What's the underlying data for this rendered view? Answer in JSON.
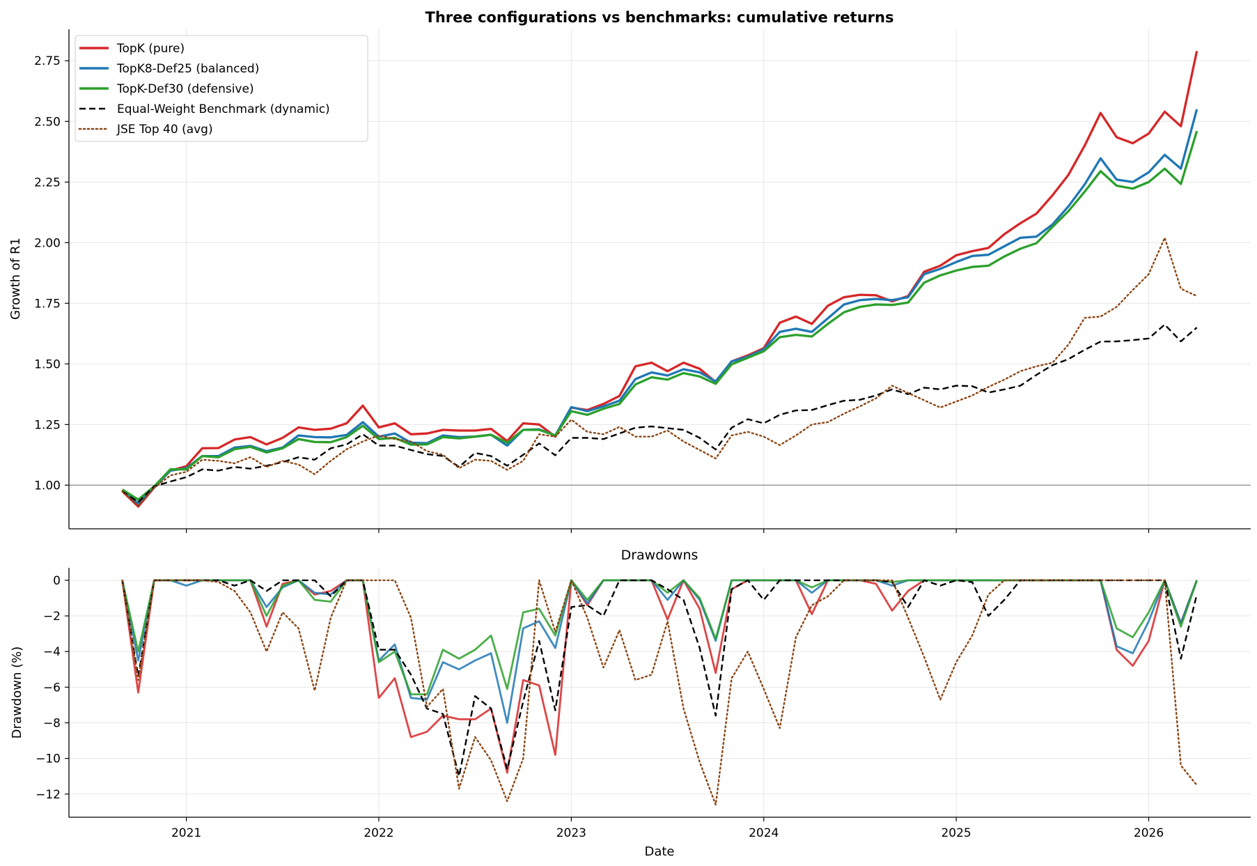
{
  "chart_data": [
    {
      "type": "line",
      "title": "Three configurations vs benchmarks: cumulative returns",
      "xlabel": "",
      "ylabel": "Growth of R1",
      "ylim": [
        0.82,
        2.88
      ],
      "yticks": [
        1.0,
        1.25,
        1.5,
        1.75,
        2.0,
        2.25,
        2.5,
        2.75
      ],
      "ytick_labels": [
        "1.00",
        "1.25",
        "1.50",
        "1.75",
        "2.00",
        "2.25",
        "2.50",
        "2.75"
      ],
      "xlim": [
        2020.39,
        2026.53
      ],
      "xticks": [
        2021,
        2022,
        2023,
        2024,
        2025,
        2026
      ],
      "xtick_labels": [
        "2021",
        "2022",
        "2023",
        "2024",
        "2025",
        "2026"
      ],
      "reference_line": 1.0,
      "grid": true,
      "legend_position": "top-left",
      "x": [
        2020.667,
        2020.75,
        2020.833,
        2020.917,
        2021.0,
        2021.083,
        2021.167,
        2021.25,
        2021.333,
        2021.417,
        2021.5,
        2021.583,
        2021.667,
        2021.75,
        2021.833,
        2021.917,
        2022.0,
        2022.083,
        2022.167,
        2022.25,
        2022.333,
        2022.417,
        2022.5,
        2022.583,
        2022.667,
        2022.75,
        2022.833,
        2022.917,
        2023.0,
        2023.083,
        2023.167,
        2023.25,
        2023.333,
        2023.417,
        2023.5,
        2023.583,
        2023.667,
        2023.75,
        2023.833,
        2023.917,
        2024.0,
        2024.083,
        2024.167,
        2024.25,
        2024.333,
        2024.417,
        2024.5,
        2024.583,
        2024.667,
        2024.75,
        2024.833,
        2024.917,
        2025.0,
        2025.083,
        2025.167,
        2025.25,
        2025.333,
        2025.417,
        2025.5,
        2025.583,
        2025.667,
        2025.75,
        2025.833,
        2025.917,
        2026.0,
        2026.083,
        2026.167,
        2026.25
      ],
      "series": [
        {
          "name": "TopK (pure)",
          "color": "#d62728",
          "style": "solid",
          "values": [
            0.975,
            0.912,
            0.99,
            1.06,
            1.078,
            1.152,
            1.153,
            1.188,
            1.198,
            1.168,
            1.195,
            1.238,
            1.228,
            1.233,
            1.255,
            1.328,
            1.238,
            1.255,
            1.21,
            1.213,
            1.228,
            1.225,
            1.225,
            1.232,
            1.182,
            1.255,
            1.25,
            1.2,
            1.32,
            1.31,
            1.335,
            1.368,
            1.49,
            1.505,
            1.47,
            1.505,
            1.48,
            1.425,
            1.51,
            1.535,
            1.565,
            1.67,
            1.695,
            1.665,
            1.74,
            1.775,
            1.785,
            1.783,
            1.758,
            1.78,
            1.88,
            1.905,
            1.948,
            1.965,
            1.978,
            2.035,
            2.08,
            2.12,
            2.195,
            2.28,
            2.4,
            2.535,
            2.435,
            2.41,
            2.45,
            2.54,
            2.48,
            2.79
          ]
        },
        {
          "name": "TopK8-Def25 (balanced)",
          "color": "#1f77b4",
          "style": "solid",
          "values": [
            0.98,
            0.925,
            0.992,
            1.06,
            1.07,
            1.12,
            1.12,
            1.155,
            1.162,
            1.14,
            1.155,
            1.205,
            1.198,
            1.197,
            1.207,
            1.26,
            1.2,
            1.213,
            1.175,
            1.173,
            1.205,
            1.198,
            1.2,
            1.208,
            1.163,
            1.228,
            1.23,
            1.205,
            1.322,
            1.305,
            1.325,
            1.348,
            1.437,
            1.465,
            1.452,
            1.478,
            1.465,
            1.428,
            1.51,
            1.53,
            1.56,
            1.632,
            1.645,
            1.632,
            1.688,
            1.745,
            1.763,
            1.768,
            1.763,
            1.775,
            1.87,
            1.892,
            1.92,
            1.945,
            1.95,
            1.985,
            2.02,
            2.025,
            2.075,
            2.15,
            2.24,
            2.348,
            2.26,
            2.25,
            2.29,
            2.362,
            2.305,
            2.55
          ]
        },
        {
          "name": "TopK-Def30 (defensive)",
          "color": "#2ca02c",
          "style": "solid",
          "values": [
            0.982,
            0.94,
            0.995,
            1.065,
            1.065,
            1.12,
            1.115,
            1.148,
            1.158,
            1.135,
            1.152,
            1.19,
            1.178,
            1.177,
            1.198,
            1.245,
            1.19,
            1.195,
            1.167,
            1.168,
            1.198,
            1.193,
            1.2,
            1.208,
            1.175,
            1.228,
            1.228,
            1.205,
            1.305,
            1.29,
            1.315,
            1.335,
            1.415,
            1.445,
            1.435,
            1.462,
            1.448,
            1.418,
            1.498,
            1.525,
            1.552,
            1.61,
            1.62,
            1.613,
            1.665,
            1.713,
            1.735,
            1.745,
            1.743,
            1.753,
            1.835,
            1.865,
            1.885,
            1.9,
            1.905,
            1.943,
            1.975,
            1.998,
            2.065,
            2.13,
            2.21,
            2.295,
            2.235,
            2.223,
            2.25,
            2.305,
            2.242,
            2.46
          ]
        },
        {
          "name": "Equal-Weight Benchmark (dynamic)",
          "color": "#000000",
          "style": "dashed",
          "values": [
            0.975,
            0.93,
            0.995,
            1.015,
            1.033,
            1.065,
            1.06,
            1.075,
            1.068,
            1.08,
            1.095,
            1.115,
            1.105,
            1.152,
            1.168,
            1.21,
            1.163,
            1.163,
            1.145,
            1.128,
            1.12,
            1.075,
            1.133,
            1.12,
            1.08,
            1.125,
            1.172,
            1.123,
            1.195,
            1.195,
            1.19,
            1.213,
            1.237,
            1.242,
            1.235,
            1.228,
            1.195,
            1.147,
            1.237,
            1.272,
            1.255,
            1.29,
            1.308,
            1.31,
            1.33,
            1.348,
            1.352,
            1.37,
            1.395,
            1.375,
            1.402,
            1.395,
            1.41,
            1.408,
            1.382,
            1.395,
            1.41,
            1.455,
            1.495,
            1.52,
            1.558,
            1.592,
            1.593,
            1.598,
            1.605,
            1.662,
            1.593,
            1.65
          ]
        },
        {
          "name": "JSE Top 40 (avg)",
          "color": "#8b4513",
          "style": "dotted",
          "values": [
            0.975,
            0.915,
            0.99,
            1.04,
            1.055,
            1.105,
            1.1,
            1.09,
            1.115,
            1.075,
            1.1,
            1.085,
            1.045,
            1.1,
            1.148,
            1.18,
            1.205,
            1.19,
            1.18,
            1.14,
            1.125,
            1.07,
            1.105,
            1.1,
            1.063,
            1.1,
            1.21,
            1.2,
            1.27,
            1.22,
            1.21,
            1.24,
            1.2,
            1.2,
            1.225,
            1.18,
            1.145,
            1.11,
            1.205,
            1.22,
            1.2,
            1.165,
            1.205,
            1.25,
            1.26,
            1.295,
            1.325,
            1.358,
            1.41,
            1.38,
            1.35,
            1.32,
            1.345,
            1.37,
            1.405,
            1.435,
            1.47,
            1.49,
            1.505,
            1.58,
            1.69,
            1.695,
            1.735,
            1.805,
            1.87,
            2.02,
            1.81,
            1.78
          ]
        }
      ]
    },
    {
      "type": "line",
      "title": "Drawdowns",
      "xlabel": "Date",
      "ylabel": "Drawdown (%)",
      "ylim": [
        -13.3,
        0.7
      ],
      "yticks": [
        0,
        -2,
        -4,
        -6,
        -8,
        -10,
        -12
      ],
      "ytick_labels": [
        "0",
        "−2",
        "−4",
        "−6",
        "−8",
        "−10",
        "−12"
      ],
      "xlim": [
        2020.39,
        2026.53
      ],
      "xticks": [
        2021,
        2022,
        2023,
        2024,
        2025,
        2026
      ],
      "xtick_labels": [
        "2021",
        "2022",
        "2023",
        "2024",
        "2025",
        "2026"
      ],
      "grid": true,
      "x": [
        2020.667,
        2020.75,
        2020.833,
        2020.917,
        2021.0,
        2021.083,
        2021.167,
        2021.25,
        2021.333,
        2021.417,
        2021.5,
        2021.583,
        2021.667,
        2021.75,
        2021.833,
        2021.917,
        2022.0,
        2022.083,
        2022.167,
        2022.25,
        2022.333,
        2022.417,
        2022.5,
        2022.583,
        2022.667,
        2022.75,
        2022.833,
        2022.917,
        2023.0,
        2023.083,
        2023.167,
        2023.25,
        2023.333,
        2023.417,
        2023.5,
        2023.583,
        2023.667,
        2023.75,
        2023.833,
        2023.917,
        2024.0,
        2024.083,
        2024.167,
        2024.25,
        2024.333,
        2024.417,
        2024.5,
        2024.583,
        2024.667,
        2024.75,
        2024.833,
        2024.917,
        2025.0,
        2025.083,
        2025.167,
        2025.25,
        2025.333,
        2025.417,
        2025.5,
        2025.583,
        2025.667,
        2025.75,
        2025.833,
        2025.917,
        2026.0,
        2026.083,
        2026.167,
        2026.25
      ],
      "series": [
        {
          "name": "TopK (pure)",
          "color": "#d62728",
          "style": "solid",
          "values": [
            0,
            -6.3,
            0,
            0,
            0,
            0,
            0,
            0,
            0,
            -2.6,
            -0.2,
            0,
            -0.8,
            -0.6,
            0,
            0,
            -6.6,
            -5.5,
            -8.8,
            -8.5,
            -7.6,
            -7.8,
            -7.8,
            -7.2,
            -10.8,
            -5.6,
            -5.9,
            -9.8,
            0,
            -1.4,
            0,
            0,
            0,
            0,
            -2.2,
            0,
            -1.6,
            -5.2,
            -0.5,
            0,
            0,
            0,
            0,
            -1.9,
            0,
            0,
            0,
            -0.2,
            -1.7,
            -0.6,
            0,
            0,
            0,
            0,
            0,
            0,
            0,
            0,
            0,
            0,
            0,
            0,
            -3.9,
            -4.8,
            -3.4,
            0,
            -2.4,
            0
          ]
        },
        {
          "name": "TopK8-Def25 (balanced)",
          "color": "#1f77b4",
          "style": "solid",
          "values": [
            0,
            -4.5,
            0,
            0,
            -0.3,
            0,
            0,
            0,
            0,
            -1.5,
            -0.4,
            0,
            -0.7,
            -0.8,
            0,
            0,
            -4.5,
            -3.6,
            -6.6,
            -6.7,
            -4.6,
            -5.0,
            -4.5,
            -4.1,
            -8.0,
            -2.7,
            -2.3,
            -3.8,
            0,
            -1.3,
            0,
            0,
            0,
            0,
            -1.1,
            0,
            -1.1,
            -3.4,
            0,
            0,
            0,
            0,
            0,
            -0.7,
            0,
            0,
            0,
            0,
            -0.3,
            0,
            0,
            0,
            0,
            0,
            0,
            0,
            0,
            0,
            0,
            0,
            0,
            0,
            -3.7,
            -4.1,
            -2.3,
            0,
            -2.4,
            0
          ]
        },
        {
          "name": "TopK-Def30 (defensive)",
          "color": "#2ca02c",
          "style": "solid",
          "values": [
            0,
            -4.0,
            0,
            0,
            0,
            0,
            0,
            0,
            0,
            -2.0,
            -0.3,
            0,
            -1.1,
            -1.2,
            0,
            0,
            -4.6,
            -4.0,
            -6.4,
            -6.4,
            -3.9,
            -4.4,
            -3.9,
            -3.1,
            -6.1,
            -1.8,
            -1.6,
            -3.1,
            0,
            -1.1,
            0,
            0,
            0,
            0,
            -0.7,
            0,
            -1.0,
            -3.3,
            0,
            0,
            0,
            0,
            0,
            -0.4,
            0,
            0,
            0,
            0,
            -0.1,
            0,
            0,
            0,
            0,
            0,
            0,
            0,
            0,
            0,
            0,
            0,
            0,
            0,
            -2.7,
            -3.2,
            -1.8,
            0,
            -2.6,
            0
          ]
        },
        {
          "name": "Equal-Weight Benchmark (dynamic)",
          "color": "#000000",
          "style": "dashed",
          "values": [
            0,
            -5.4,
            0,
            0,
            0,
            0,
            0,
            -0.3,
            0,
            -0.6,
            0,
            0,
            0,
            -0.9,
            0,
            0,
            -3.9,
            -3.9,
            -5.3,
            -7.2,
            -7.5,
            -11.0,
            -6.5,
            -7.2,
            -10.6,
            -6.8,
            -3.4,
            -7.3,
            -1.5,
            -1.4,
            -2.0,
            0,
            0,
            0,
            -0.5,
            -1.1,
            -3.8,
            -7.6,
            -0.5,
            0,
            -1.1,
            0,
            0,
            0,
            0,
            0,
            0,
            0,
            -0.1,
            -1.5,
            0,
            -0.3,
            0,
            -0.1,
            -2.0,
            -1.1,
            0,
            0,
            0,
            0,
            0,
            0,
            0,
            0,
            0,
            0,
            -4.4,
            -0.8
          ]
        },
        {
          "name": "JSE Top 40 (avg)",
          "color": "#8b4513",
          "style": "dotted",
          "values": [
            0,
            -5.6,
            0,
            0,
            0,
            0,
            -0.1,
            -0.6,
            -1.8,
            -4.0,
            -1.8,
            -2.7,
            -6.2,
            -2.1,
            0,
            0,
            0,
            0,
            -2.1,
            -7.1,
            -6.1,
            -11.7,
            -8.8,
            -10.1,
            -12.4,
            -10.0,
            0,
            -2.9,
            0,
            -2.1,
            -4.9,
            -2.8,
            -5.6,
            -5.3,
            -2.3,
            -7.2,
            -10.2,
            -12.6,
            -5.5,
            -4.0,
            -6.1,
            -8.3,
            -3.2,
            -1.4,
            -0.9,
            0,
            0,
            0,
            0,
            -2.1,
            -4.3,
            -6.7,
            -4.6,
            -3.1,
            -0.8,
            0,
            0,
            0,
            0,
            0,
            0,
            0,
            0,
            0,
            0,
            0,
            -10.4,
            -11.5
          ]
        }
      ]
    }
  ]
}
